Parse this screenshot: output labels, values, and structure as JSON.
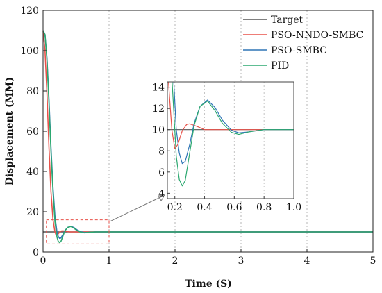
{
  "chart_data": [
    {
      "type": "line",
      "xlabel": "Time (S)",
      "ylabel": "Displacement (MM)",
      "xlim": [
        0,
        5
      ],
      "ylim": [
        0,
        120
      ],
      "x_ticks": [
        "0",
        "1",
        "2",
        "3",
        "4",
        "5"
      ],
      "y_ticks": [
        "0",
        "20",
        "40",
        "60",
        "80",
        "100",
        "120"
      ],
      "grid": "dotted-vertical",
      "legend_position": "top-right",
      "series": [
        {
          "name": "Target",
          "color": "#555555",
          "x": [
            0,
            5
          ],
          "y": [
            10,
            10
          ]
        },
        {
          "name": "PSO-NNDO-SMBC",
          "color": "#e8524a",
          "x": [
            0,
            0.03,
            0.06,
            0.09,
            0.12,
            0.15,
            0.18,
            0.2,
            0.22,
            0.25,
            0.28,
            0.3,
            0.35,
            0.4,
            0.5,
            0.6,
            0.8,
            1.0,
            2,
            3,
            4,
            5
          ],
          "y": [
            110,
            100,
            78,
            52,
            30,
            16,
            10,
            8.2,
            8.6,
            9.9,
            10.5,
            10.55,
            10.3,
            10.0,
            10.0,
            10.0,
            10.0,
            10.0,
            10,
            10,
            10,
            10
          ]
        },
        {
          "name": "PSO-SMBC",
          "color": "#2e75b6",
          "x": [
            0,
            0.03,
            0.06,
            0.09,
            0.12,
            0.15,
            0.18,
            0.21,
            0.23,
            0.25,
            0.27,
            0.3,
            0.33,
            0.37,
            0.42,
            0.47,
            0.52,
            0.58,
            0.63,
            0.7,
            0.8,
            0.9,
            1.0,
            2,
            3,
            4,
            5
          ],
          "y": [
            110,
            108,
            96,
            76,
            52,
            32,
            18,
            10,
            7.8,
            6.8,
            7.0,
            8.6,
            10.6,
            12.2,
            12.8,
            12.1,
            10.9,
            9.95,
            9.7,
            9.8,
            10.0,
            10.0,
            10.0,
            10,
            10,
            10,
            10
          ]
        },
        {
          "name": "PID",
          "color": "#2ca870",
          "x": [
            0,
            0.03,
            0.06,
            0.09,
            0.12,
            0.15,
            0.18,
            0.21,
            0.23,
            0.25,
            0.27,
            0.3,
            0.33,
            0.37,
            0.42,
            0.47,
            0.52,
            0.58,
            0.63,
            0.7,
            0.8,
            0.9,
            1.0,
            2,
            3,
            4,
            5
          ],
          "y": [
            110,
            108,
            95,
            74,
            50,
            30,
            15,
            7.5,
            5.3,
            4.7,
            5.2,
            7.8,
            10.4,
            12.2,
            12.7,
            11.8,
            10.6,
            9.75,
            9.55,
            9.8,
            10.0,
            10.0,
            10.0,
            10,
            10,
            10,
            10
          ]
        }
      ]
    },
    {
      "type": "line",
      "role": "inset",
      "xlim": [
        0.15,
        1.0
      ],
      "ylim": [
        3.5,
        14.5
      ],
      "x_ticks": [
        "0.2",
        "0.4",
        "0.6",
        "0.8",
        "1.0"
      ],
      "y_ticks": [
        "4",
        "6",
        "8",
        "10",
        "12",
        "14"
      ],
      "zoom_region": {
        "x": [
          0.05,
          1.0
        ],
        "y": [
          4,
          16
        ]
      }
    }
  ]
}
